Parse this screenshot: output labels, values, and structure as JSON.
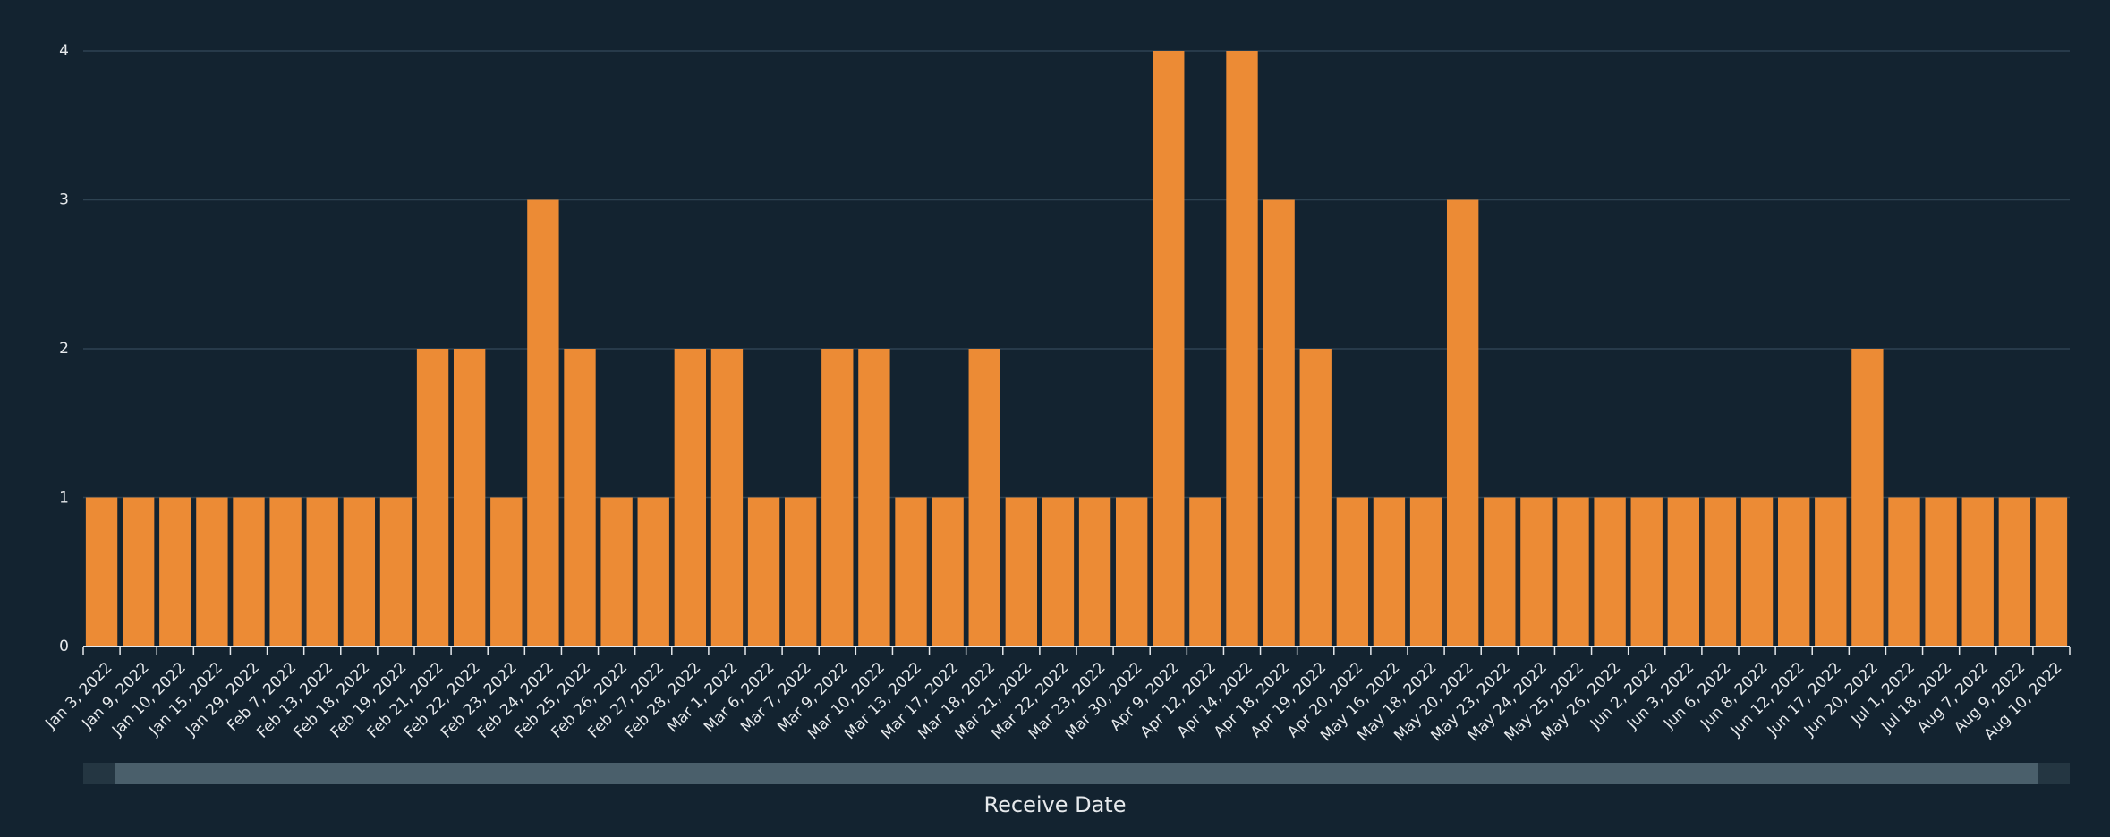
{
  "chart_data": {
    "type": "bar",
    "x_label": "Receive Date",
    "categories": [
      "Jan 3, 2022",
      "Jan 9, 2022",
      "Jan 10, 2022",
      "Jan 15, 2022",
      "Jan 29, 2022",
      "Feb 7, 2022",
      "Feb 13, 2022",
      "Feb 18, 2022",
      "Feb 19, 2022",
      "Feb 21, 2022",
      "Feb 22, 2022",
      "Feb 23, 2022",
      "Feb 24, 2022",
      "Feb 25, 2022",
      "Feb 26, 2022",
      "Feb 27, 2022",
      "Feb 28, 2022",
      "Mar 1, 2022",
      "Mar 6, 2022",
      "Mar 7, 2022",
      "Mar 9, 2022",
      "Mar 10, 2022",
      "Mar 13, 2022",
      "Mar 17, 2022",
      "Mar 18, 2022",
      "Mar 21, 2022",
      "Mar 22, 2022",
      "Mar 23, 2022",
      "Mar 30, 2022",
      "Apr 9, 2022",
      "Apr 12, 2022",
      "Apr 14, 2022",
      "Apr 18, 2022",
      "Apr 19, 2022",
      "Apr 20, 2022",
      "May 16, 2022",
      "May 18, 2022",
      "May 20, 2022",
      "May 23, 2022",
      "May 24, 2022",
      "May 25, 2022",
      "May 26, 2022",
      "Jun 2, 2022",
      "Jun 3, 2022",
      "Jun 6, 2022",
      "Jun 8, 2022",
      "Jun 12, 2022",
      "Jun 17, 2022",
      "Jun 20, 2022",
      "Jul 1, 2022",
      "Jul 18, 2022",
      "Aug 7, 2022",
      "Aug 9, 2022",
      "Aug 10, 2022"
    ],
    "values": [
      1,
      1,
      1,
      1,
      1,
      1,
      1,
      1,
      1,
      2,
      2,
      1,
      3,
      2,
      1,
      1,
      2,
      2,
      1,
      1,
      2,
      2,
      1,
      1,
      2,
      1,
      1,
      1,
      1,
      4,
      1,
      4,
      3,
      2,
      1,
      1,
      1,
      3,
      1,
      1,
      1,
      1,
      1,
      1,
      1,
      1,
      1,
      1,
      2,
      1,
      1,
      1,
      1,
      1
    ],
    "color": "#ec8b35",
    "ylim": [
      0,
      4
    ],
    "yticks": [
      0,
      1,
      2,
      3,
      4
    ],
    "grid": true
  }
}
